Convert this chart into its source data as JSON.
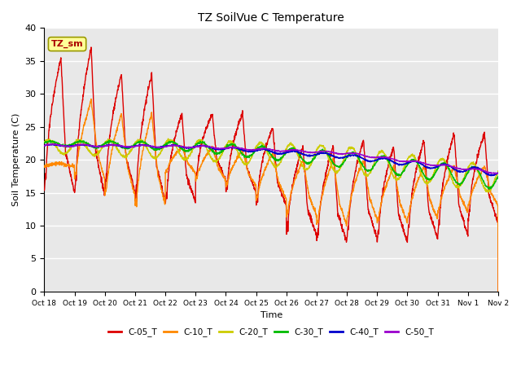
{
  "title": "TZ SoilVue C Temperature",
  "ylabel": "Soil Temperature (C)",
  "xlabel": "Time",
  "ylim": [
    0,
    40
  ],
  "yticks": [
    0,
    5,
    10,
    15,
    20,
    25,
    30,
    35,
    40
  ],
  "background_color": "#e8e8e8",
  "annotation_text": "TZ_sm",
  "annotation_bg": "#ffff99",
  "annotation_fg": "#aa0000",
  "x_labels": [
    "Oct 18",
    "Oct 19",
    "Oct 20",
    "Oct 21",
    "Oct 22",
    "Oct 23",
    "Oct 24",
    "Oct 25",
    "Oct 26",
    "Oct 27",
    "Oct 28",
    "Oct 29",
    "Oct 30",
    "Oct 31",
    "Nov 1",
    "Nov 2"
  ],
  "series": {
    "C-05_T": {
      "color": "#dd0000",
      "lw": 1.0
    },
    "C-10_T": {
      "color": "#ff8800",
      "lw": 1.0
    },
    "C-20_T": {
      "color": "#cccc00",
      "lw": 1.0
    },
    "C-30_T": {
      "color": "#00bb00",
      "lw": 1.0
    },
    "C-40_T": {
      "color": "#0000cc",
      "lw": 1.0
    },
    "C-50_T": {
      "color": "#9900cc",
      "lw": 1.0
    }
  },
  "legend_colors": [
    "#dd0000",
    "#ff8800",
    "#cccc00",
    "#00bb00",
    "#0000cc",
    "#9900cc"
  ],
  "legend_labels": [
    "C-05_T",
    "C-10_T",
    "C-20_T",
    "C-30_T",
    "C-40_T",
    "C-50_T"
  ]
}
